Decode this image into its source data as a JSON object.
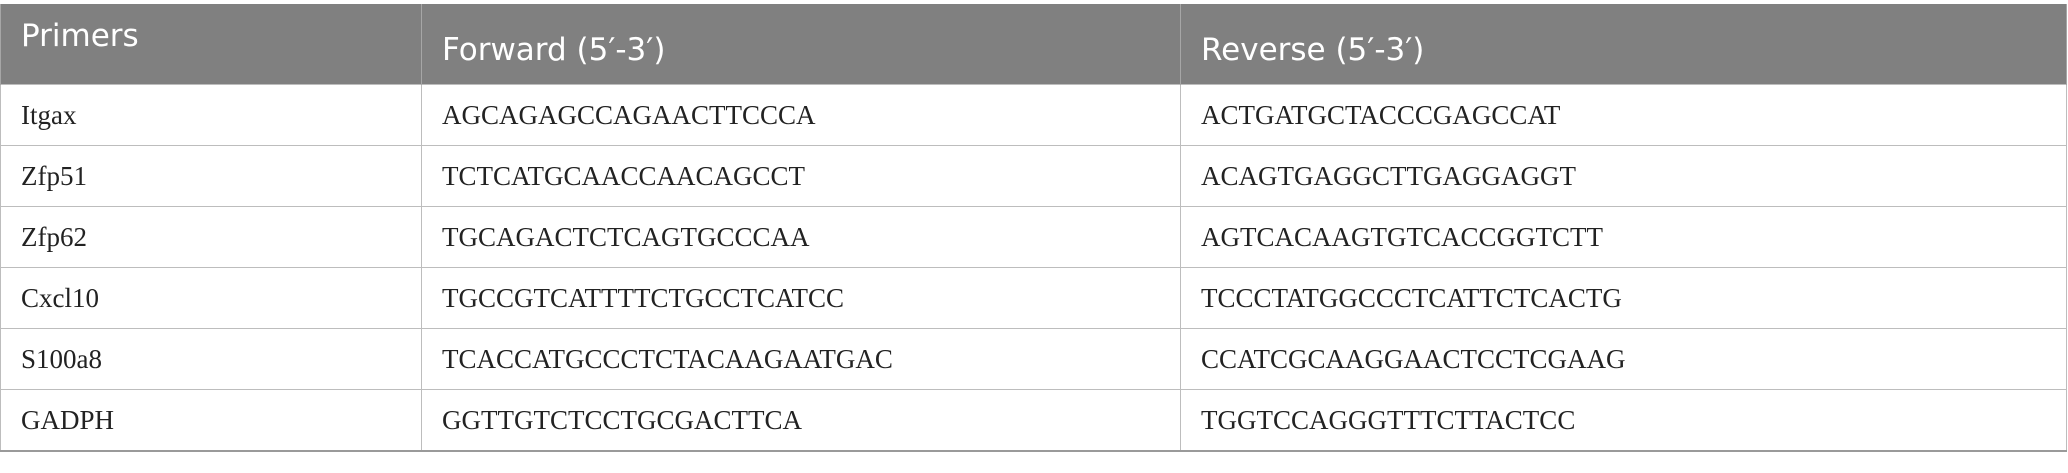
{
  "table": {
    "headers": {
      "primers": "Primers",
      "forward": "Forward (5′-3′)",
      "reverse": "Reverse (5′-3′)"
    },
    "rows": [
      {
        "primer": "Itgax",
        "forward": "AGCAGAGCCAGAACTTCCCA",
        "reverse": "ACTGATGCTACCCGAGCCAT"
      },
      {
        "primer": "Zfp51",
        "forward": "TCTCATGCAACCAACAGCCT",
        "reverse": "ACAGTGAGGCTTGAGGAGGT"
      },
      {
        "primer": "Zfp62",
        "forward": "TGCAGACTCTCAGTGCCCAA",
        "reverse": "AGTCACAAGTGTCACCGGTCTT"
      },
      {
        "primer": "Cxcl10",
        "forward": "TGCCGTCATTTTCTGCCTCATCC",
        "reverse": "TCCCTATGGCCCTCATTCTCACTG"
      },
      {
        "primer": "S100a8",
        "forward": "TCACCATGCCCTCTACAAGAATGAC",
        "reverse": "CCATCGCAAGGAACTCCTCGAAG"
      },
      {
        "primer": "GADPH",
        "forward": "GGTTGTCTCCTGCGACTTCA",
        "reverse": "TGGTCCAGGGTTTCTTACTCC"
      }
    ]
  }
}
